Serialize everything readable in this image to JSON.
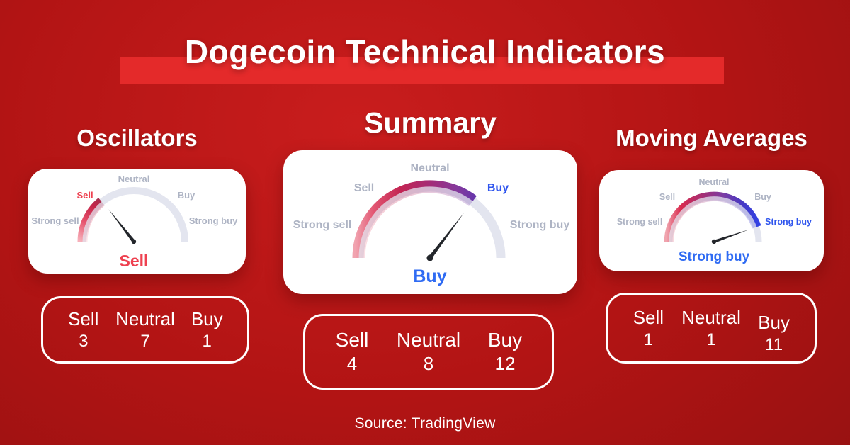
{
  "title": "Dogecoin Technical Indicators",
  "source_note": "Source: TradingView",
  "scale_labels": {
    "strong_sell": "Strong sell",
    "sell": "Sell",
    "neutral": "Neutral",
    "buy": "Buy",
    "strong_buy": "Strong buy"
  },
  "counts_header": {
    "sell": "Sell",
    "neutral": "Neutral",
    "buy": "Buy"
  },
  "gauges": {
    "oscillators": {
      "heading": "Oscillators",
      "verdict": "Sell",
      "needle_angle_deg": 128,
      "counts": {
        "sell": "3",
        "neutral": "7",
        "buy": "1"
      }
    },
    "summary": {
      "heading": "Summary",
      "verdict": "Buy",
      "needle_angle_deg": 53,
      "counts": {
        "sell": "4",
        "neutral": "8",
        "buy": "12"
      }
    },
    "moving_averages": {
      "heading": "Moving Averages",
      "verdict": "Strong buy",
      "needle_angle_deg": 19,
      "counts": {
        "sell": "1",
        "neutral": "1",
        "buy": "11"
      }
    }
  },
  "colors": {
    "background_red": "#b21414",
    "banner_red": "#e42a2a",
    "sell_red": "#ee4150",
    "buy_blue": "#2f6bf3",
    "strong_buy_blue": "#2f55ee",
    "track_gray": "#e3e5ef",
    "label_gray": "#aeb4c4"
  },
  "chart_data": [
    {
      "type": "gauge",
      "title": "Oscillators",
      "scale": [
        "Strong sell",
        "Sell",
        "Neutral",
        "Buy",
        "Strong buy"
      ],
      "verdict": "Sell",
      "needle_angle_deg_from_east": 128,
      "counts": {
        "Sell": 3,
        "Neutral": 7,
        "Buy": 1
      }
    },
    {
      "type": "gauge",
      "title": "Summary",
      "scale": [
        "Strong sell",
        "Sell",
        "Neutral",
        "Buy",
        "Strong buy"
      ],
      "verdict": "Buy",
      "needle_angle_deg_from_east": 53,
      "counts": {
        "Sell": 4,
        "Neutral": 8,
        "Buy": 12
      }
    },
    {
      "type": "gauge",
      "title": "Moving Averages",
      "scale": [
        "Strong sell",
        "Sell",
        "Neutral",
        "Buy",
        "Strong buy"
      ],
      "verdict": "Strong buy",
      "needle_angle_deg_from_east": 19,
      "counts": {
        "Sell": 1,
        "Neutral": 1,
        "Buy": 11
      }
    }
  ]
}
